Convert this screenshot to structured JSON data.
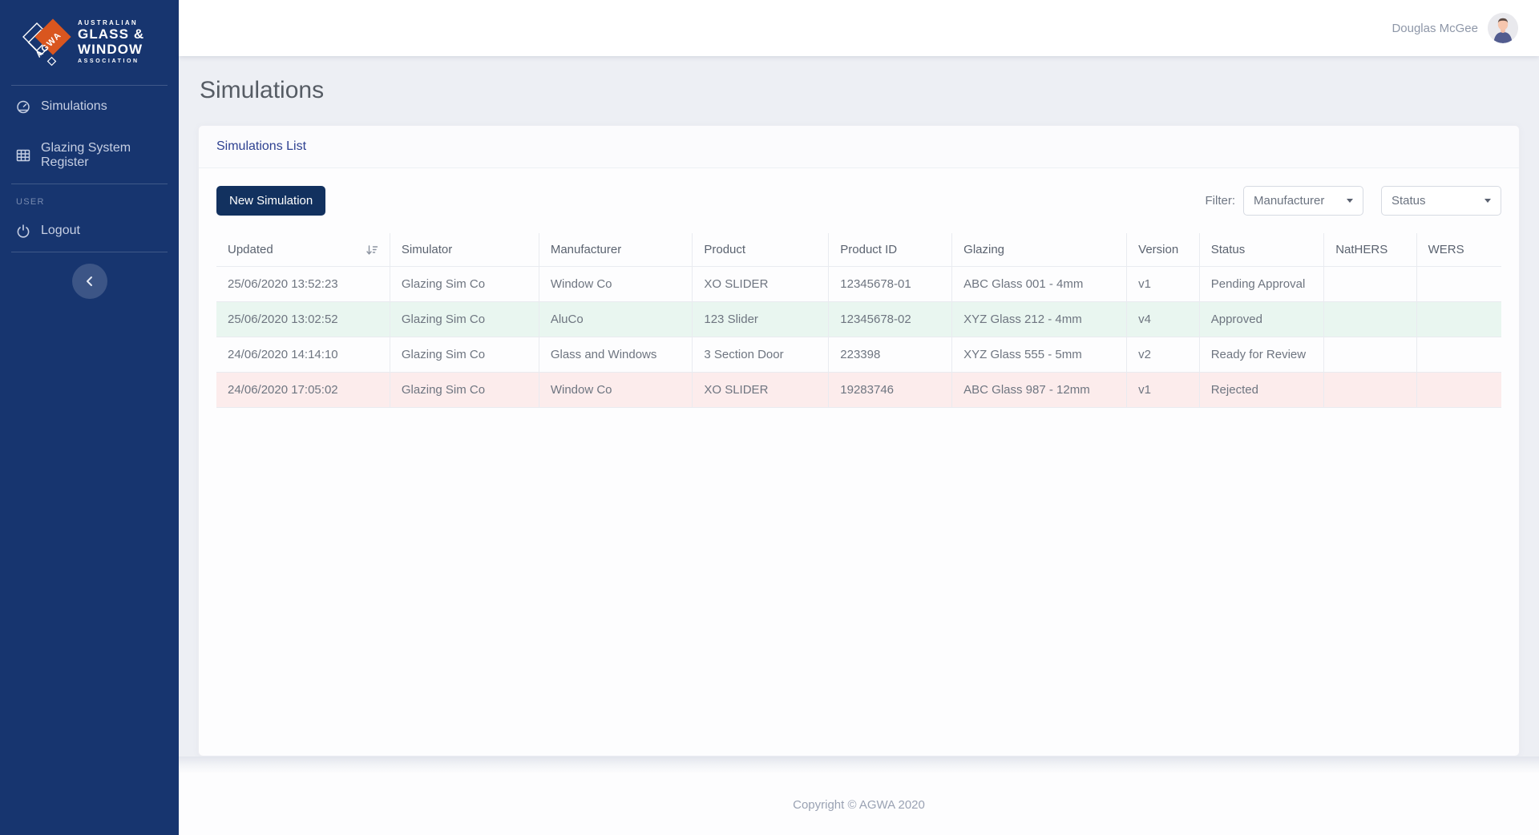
{
  "brand": {
    "logo_mark_text": "AGWA",
    "logo_line1": "AUSTRALIAN",
    "logo_line2": "GLASS &",
    "logo_line3": "WINDOW",
    "logo_line4": "ASSOCIATION",
    "colors": {
      "sidebar_navy": "#17356f",
      "logo_orange": "#d9561f",
      "accent_blue": "#2e4191",
      "button_navy": "#12315f",
      "row_success_bg": "#e9f6f0",
      "row_danger_bg": "#fcecec"
    }
  },
  "sidebar": {
    "items": [
      {
        "label": "Simulations",
        "icon": "tachometer-icon"
      },
      {
        "label": "Glazing System Register",
        "icon": "table-icon"
      }
    ],
    "section_label": "USER",
    "logout": {
      "label": "Logout",
      "icon": "power-icon"
    },
    "collapse_icon": "chevron-left-icon"
  },
  "topbar": {
    "user_name": "Douglas McGee",
    "avatar_icon": "user-avatar"
  },
  "page": {
    "title": "Simulations"
  },
  "card": {
    "header": "Simulations List",
    "new_button_label": "New Simulation",
    "filter_label": "Filter:",
    "filters": [
      {
        "value": "Manufacturer",
        "icon": "caret-down-icon"
      },
      {
        "value": "Status",
        "icon": "caret-down-icon"
      }
    ]
  },
  "table": {
    "sort_icon": "sort-amount-down-icon",
    "columns": [
      "Updated",
      "Simulator",
      "Manufacturer",
      "Product",
      "Product ID",
      "Glazing",
      "Version",
      "Status",
      "NatHERS",
      "WERS"
    ],
    "rows": [
      {
        "updated": "25/06/2020 13:52:23",
        "simulator": "Glazing Sim Co",
        "manufacturer": "Window Co",
        "product": "XO SLIDER",
        "product_id": "12345678-01",
        "glazing": "ABC Glass 001 - 4mm",
        "version": "v1",
        "status": "Pending Approval",
        "nathers": "",
        "wers": "",
        "highlight": "none"
      },
      {
        "updated": "25/06/2020 13:02:52",
        "simulator": "Glazing Sim Co",
        "manufacturer": "AluCo",
        "product": "123 Slider",
        "product_id": "12345678-02",
        "glazing": "XYZ Glass 212 - 4mm",
        "version": "v4",
        "status": "Approved",
        "nathers": "",
        "wers": "",
        "highlight": "success"
      },
      {
        "updated": "24/06/2020 14:14:10",
        "simulator": "Glazing Sim Co",
        "manufacturer": "Glass and Windows",
        "product": "3 Section Door",
        "product_id": "223398",
        "glazing": "XYZ Glass 555 - 5mm",
        "version": "v2",
        "status": "Ready for Review",
        "nathers": "",
        "wers": "",
        "highlight": "none"
      },
      {
        "updated": "24/06/2020 17:05:02",
        "simulator": "Glazing Sim Co",
        "manufacturer": "Window Co",
        "product": "XO SLIDER",
        "product_id": "19283746",
        "glazing": "ABC Glass 987 - 12mm",
        "version": "v1",
        "status": "Rejected",
        "nathers": "",
        "wers": "",
        "highlight": "danger"
      }
    ]
  },
  "footer": {
    "copyright": "Copyright © AGWA 2020"
  }
}
